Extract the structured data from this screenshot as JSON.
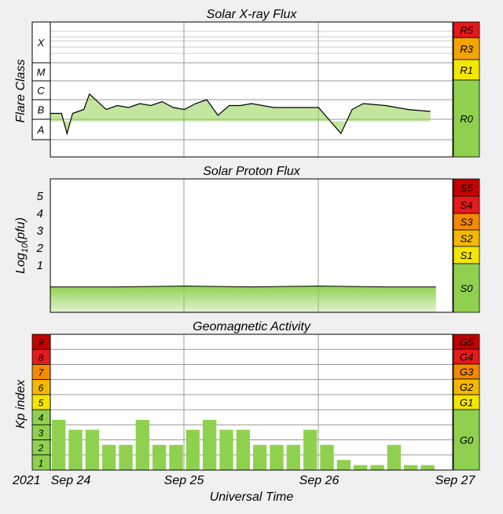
{
  "colors": {
    "green": "#8fd14f",
    "yellow": "#f5e600",
    "orange": "#f5a300",
    "darkorange": "#f58a00",
    "red": "#e61a1a",
    "darkred": "#c40000",
    "grid": "#9a9a9a",
    "frame": "#000000"
  },
  "xray": {
    "title": "Solar X-ray Flux",
    "ylabel": "Flare Class",
    "classes": [
      "X",
      "M",
      "C",
      "B",
      "A"
    ],
    "scale": [
      {
        "label": "R5",
        "color": "#e61a1a"
      },
      {
        "label": "R3",
        "color": "#f5a300"
      },
      {
        "label": "R1",
        "color": "#f5e600"
      },
      {
        "label": "R0",
        "color": "#8fd14f"
      }
    ]
  },
  "proton": {
    "title": "Solar Proton Flux",
    "ylabel": "Log10(pfu)",
    "ticks": [
      "5",
      "4",
      "3",
      "2",
      "1"
    ],
    "scale": [
      {
        "label": "S5",
        "color": "#c40000"
      },
      {
        "label": "S4",
        "color": "#e61a1a"
      },
      {
        "label": "S3",
        "color": "#f58a00"
      },
      {
        "label": "S2",
        "color": "#f5b800"
      },
      {
        "label": "S1",
        "color": "#f5e600"
      },
      {
        "label": "S0",
        "color": "#8fd14f"
      }
    ]
  },
  "geomag": {
    "title": "Geomagnetic Activity",
    "ylabel": "Kp index",
    "levels": [
      "9",
      "8",
      "7",
      "6",
      "5",
      "4",
      "3",
      "2",
      "1"
    ],
    "level_colors": [
      "#c40000",
      "#e61a1a",
      "#f58a00",
      "#f5b800",
      "#f5e600",
      "#8fd14f",
      "#8fd14f",
      "#8fd14f",
      "#8fd14f"
    ],
    "scale": [
      {
        "label": "G5",
        "color": "#c40000"
      },
      {
        "label": "G4",
        "color": "#e61a1a"
      },
      {
        "label": "G3",
        "color": "#f58a00"
      },
      {
        "label": "G2",
        "color": "#f5b800"
      },
      {
        "label": "G1",
        "color": "#f5e600"
      },
      {
        "label": "G0",
        "color": "#8fd14f"
      }
    ]
  },
  "xaxis": {
    "year": "2021",
    "ticks": [
      "Sep 24",
      "Sep 25",
      "Sep 26",
      "Sep 27"
    ],
    "label": "Universal Time"
  },
  "chart_data": [
    {
      "type": "line",
      "title": "Solar X-ray Flux",
      "ylabel": "Flare Class",
      "x_range": [
        "2021-09-24",
        "2021-09-27"
      ],
      "series": [
        {
          "x": [
            "2021-09-24 00:00",
            "2021-09-24 02:00",
            "2021-09-24 03:00",
            "2021-09-24 04:00",
            "2021-09-24 06:00",
            "2021-09-24 07:00",
            "2021-09-24 10:00",
            "2021-09-24 12:00",
            "2021-09-24 14:00",
            "2021-09-24 16:00",
            "2021-09-24 18:00",
            "2021-09-24 20:00",
            "2021-09-24 22:00",
            "2021-09-25 00:00",
            "2021-09-25 02:00",
            "2021-09-25 04:00",
            "2021-09-25 06:00",
            "2021-09-25 08:00",
            "2021-09-25 10:00",
            "2021-09-25 12:00",
            "2021-09-25 16:00",
            "2021-09-25 20:00",
            "2021-09-26 00:00",
            "2021-09-26 04:00",
            "2021-09-26 06:00",
            "2021-09-26 08:00",
            "2021-09-26 12:00",
            "2021-09-26 16:00",
            "2021-09-26 20:00"
          ],
          "y": [
            2.3,
            2.3,
            1.3,
            2.3,
            2.5,
            3.3,
            2.5,
            2.7,
            2.6,
            2.8,
            2.7,
            2.9,
            2.6,
            2.5,
            2.8,
            3.0,
            2.2,
            2.7,
            2.7,
            2.8,
            2.6,
            2.6,
            2.6,
            1.3,
            2.5,
            2.8,
            2.7,
            2.5,
            2.4
          ]
        }
      ]
    },
    {
      "type": "area",
      "title": "Solar Proton Flux",
      "ylabel": "Log10(pfu)",
      "ylim": [
        -1,
        6
      ],
      "x_range": [
        "2021-09-24",
        "2021-09-27"
      ],
      "series": [
        {
          "x": [
            "2021-09-24 00:00",
            "2021-09-24 12:00",
            "2021-09-25 00:00",
            "2021-09-25 12:00",
            "2021-09-26 00:00",
            "2021-09-26 12:00",
            "2021-09-26 21:00"
          ],
          "y": [
            -0.3,
            -0.3,
            -0.25,
            -0.3,
            -0.25,
            -0.3,
            -0.3
          ]
        }
      ]
    },
    {
      "type": "bar",
      "title": "Geomagnetic Activity",
      "ylabel": "Kp index",
      "ylim": [
        0,
        9
      ],
      "categories": [
        "09-24 00",
        "09-24 03",
        "09-24 06",
        "09-24 09",
        "09-24 12",
        "09-24 15",
        "09-24 18",
        "09-24 21",
        "09-25 00",
        "09-25 03",
        "09-25 06",
        "09-25 09",
        "09-25 12",
        "09-25 15",
        "09-25 18",
        "09-25 21",
        "09-26 00",
        "09-26 03",
        "09-26 06",
        "09-26 09",
        "09-26 12",
        "09-26 15",
        "09-26 18",
        "09-26 21"
      ],
      "values": [
        3.33,
        2.67,
        2.67,
        1.67,
        1.67,
        3.33,
        1.67,
        1.67,
        2.67,
        3.33,
        2.67,
        2.67,
        1.67,
        1.67,
        1.67,
        2.67,
        1.67,
        0.67,
        0.33,
        0.33,
        1.67,
        0.33,
        0.33,
        0
      ]
    }
  ]
}
